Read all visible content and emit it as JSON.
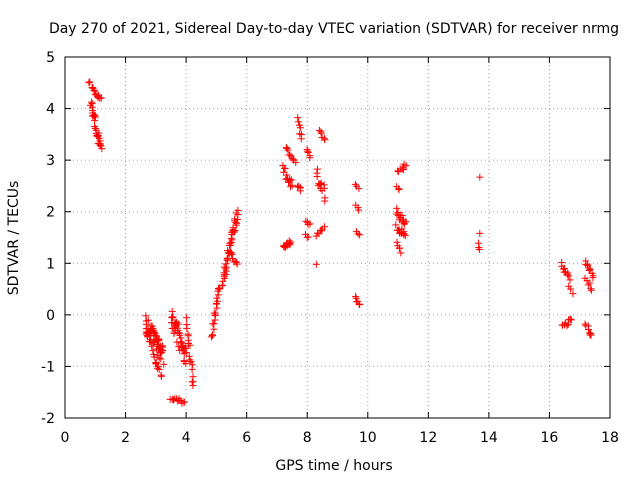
{
  "chart_data": {
    "type": "scatter",
    "title": "Day 270 of 2021, Sidereal Day-to-day VTEC variation (SDTVAR) for receiver nrmg",
    "xlabel": "GPS time / hours",
    "ylabel": "SDTVAR / TECUs",
    "xlim": [
      0,
      18
    ],
    "ylim": [
      -2,
      5
    ],
    "xticks": [
      0,
      2,
      4,
      6,
      8,
      10,
      12,
      14,
      16,
      18
    ],
    "yticks": [
      -2,
      -1,
      0,
      1,
      2,
      3,
      4,
      5
    ],
    "grid": true,
    "marker": "plus",
    "color": "#ff0000",
    "series": [
      {
        "name": "SDTVAR",
        "segments": [
          {
            "x": [
              0.82,
              1.18
            ],
            "y": [
              4.5,
              4.2
            ],
            "n": 14,
            "jitter": 0.06
          },
          {
            "x": [
              0.85,
              1.2
            ],
            "y": [
              4.1,
              3.15
            ],
            "n": 30,
            "jitter": 0.1
          },
          {
            "x": [
              2.65,
              3.25
            ],
            "y": [
              -0.2,
              -0.8
            ],
            "n": 60,
            "jitter": 0.22
          },
          {
            "x": [
              2.9,
              3.2
            ],
            "y": [
              -0.8,
              -1.15
            ],
            "n": 10,
            "jitter": 0.06
          },
          {
            "x": [
              3.5,
              4.0
            ],
            "y": [
              -0.05,
              -0.8
            ],
            "n": 45,
            "jitter": 0.22
          },
          {
            "x": [
              3.5,
              3.95
            ],
            "y": [
              -1.62,
              -1.7
            ],
            "n": 12,
            "jitter": 0.04
          },
          {
            "x": [
              4.0,
              4.25
            ],
            "y": [
              -0.1,
              -1.45
            ],
            "n": 18,
            "jitter": 0.1
          },
          {
            "x": [
              4.85,
              5.1
            ],
            "y": [
              -0.5,
              0.6
            ],
            "n": 22,
            "jitter": 0.08
          },
          {
            "x": [
              5.2,
              5.7
            ],
            "y": [
              0.6,
              2.0
            ],
            "n": 45,
            "jitter": 0.12
          },
          {
            "x": [
              5.45,
              5.7
            ],
            "y": [
              1.2,
              0.95
            ],
            "n": 8,
            "jitter": 0.05
          },
          {
            "x": [
              7.2,
              7.5
            ],
            "y": [
              2.85,
              2.45
            ],
            "n": 14,
            "jitter": 0.12
          },
          {
            "x": [
              7.3,
              7.6
            ],
            "y": [
              3.2,
              3.0
            ],
            "n": 10,
            "jitter": 0.06
          },
          {
            "x": [
              7.2,
              7.45
            ],
            "y": [
              1.3,
              1.4
            ],
            "n": 12,
            "jitter": 0.05
          },
          {
            "x": [
              7.7,
              7.8
            ],
            "y": [
              3.85,
              3.4
            ],
            "n": 7,
            "jitter": 0.04
          },
          {
            "x": [
              7.7,
              7.8
            ],
            "y": [
              2.5,
              2.42
            ],
            "n": 5,
            "jitter": 0.03
          },
          {
            "x": [
              8.0,
              8.1
            ],
            "y": [
              3.2,
              3.0
            ],
            "n": 5,
            "jitter": 0.05
          },
          {
            "x": [
              7.95,
              8.1
            ],
            "y": [
              1.85,
              1.75
            ],
            "n": 4,
            "jitter": 0.04
          },
          {
            "x": [
              7.95,
              8.05
            ],
            "y": [
              1.55,
              1.5
            ],
            "n": 3,
            "jitter": 0.03
          },
          {
            "x": [
              8.3,
              8.6
            ],
            "y": [
              2.75,
              2.3
            ],
            "n": 14,
            "jitter": 0.12
          },
          {
            "x": [
              8.4,
              8.6
            ],
            "y": [
              3.55,
              3.4
            ],
            "n": 6,
            "jitter": 0.04
          },
          {
            "x": [
              8.3,
              8.55
            ],
            "y": [
              1.55,
              1.72
            ],
            "n": 7,
            "jitter": 0.04
          },
          {
            "x": [
              8.3,
              8.3
            ],
            "y": [
              0.98,
              0.98
            ],
            "n": 1,
            "jitter": 0
          },
          {
            "x": [
              9.6,
              9.7
            ],
            "y": [
              2.5,
              2.45
            ],
            "n": 3,
            "jitter": 0.03
          },
          {
            "x": [
              9.6,
              9.7
            ],
            "y": [
              2.1,
              2.05
            ],
            "n": 3,
            "jitter": 0.03
          },
          {
            "x": [
              9.6,
              9.7
            ],
            "y": [
              1.62,
              1.55
            ],
            "n": 3,
            "jitter": 0.03
          },
          {
            "x": [
              9.6,
              9.72
            ],
            "y": [
              0.35,
              0.2
            ],
            "n": 6,
            "jitter": 0.04
          },
          {
            "x": [
              10.95,
              11.25
            ],
            "y": [
              2.0,
              1.75
            ],
            "n": 14,
            "jitter": 0.08
          },
          {
            "x": [
              10.95,
              11.25
            ],
            "y": [
              1.7,
              1.55
            ],
            "n": 12,
            "jitter": 0.06
          },
          {
            "x": [
              10.95,
              11.1
            ],
            "y": [
              1.4,
              1.22
            ],
            "n": 5,
            "jitter": 0.04
          },
          {
            "x": [
              11.0,
              11.25
            ],
            "y": [
              2.75,
              2.9
            ],
            "n": 8,
            "jitter": 0.05
          },
          {
            "x": [
              10.95,
              11.05
            ],
            "y": [
              2.5,
              2.42
            ],
            "n": 3,
            "jitter": 0.03
          },
          {
            "x": [
              13.7,
              13.7
            ],
            "y": [
              2.67,
              2.67
            ],
            "n": 1,
            "jitter": 0
          },
          {
            "x": [
              13.7,
              13.7
            ],
            "y": [
              1.58,
              1.58
            ],
            "n": 1,
            "jitter": 0
          },
          {
            "x": [
              13.65,
              13.7
            ],
            "y": [
              1.38,
              1.27
            ],
            "n": 3,
            "jitter": 0.02
          },
          {
            "x": [
              16.4,
              16.65
            ],
            "y": [
              1.0,
              0.7
            ],
            "n": 10,
            "jitter": 0.06
          },
          {
            "x": [
              16.65,
              16.75
            ],
            "y": [
              0.55,
              0.42
            ],
            "n": 3,
            "jitter": 0.03
          },
          {
            "x": [
              16.4,
              16.75
            ],
            "y": [
              -0.25,
              -0.05
            ],
            "n": 10,
            "jitter": 0.05
          },
          {
            "x": [
              17.2,
              17.45
            ],
            "y": [
              1.0,
              0.75
            ],
            "n": 10,
            "jitter": 0.05
          },
          {
            "x": [
              17.2,
              17.4
            ],
            "y": [
              0.7,
              0.5
            ],
            "n": 6,
            "jitter": 0.05
          },
          {
            "x": [
              17.2,
              17.4
            ],
            "y": [
              -0.2,
              -0.4
            ],
            "n": 8,
            "jitter": 0.05
          }
        ]
      }
    ]
  }
}
